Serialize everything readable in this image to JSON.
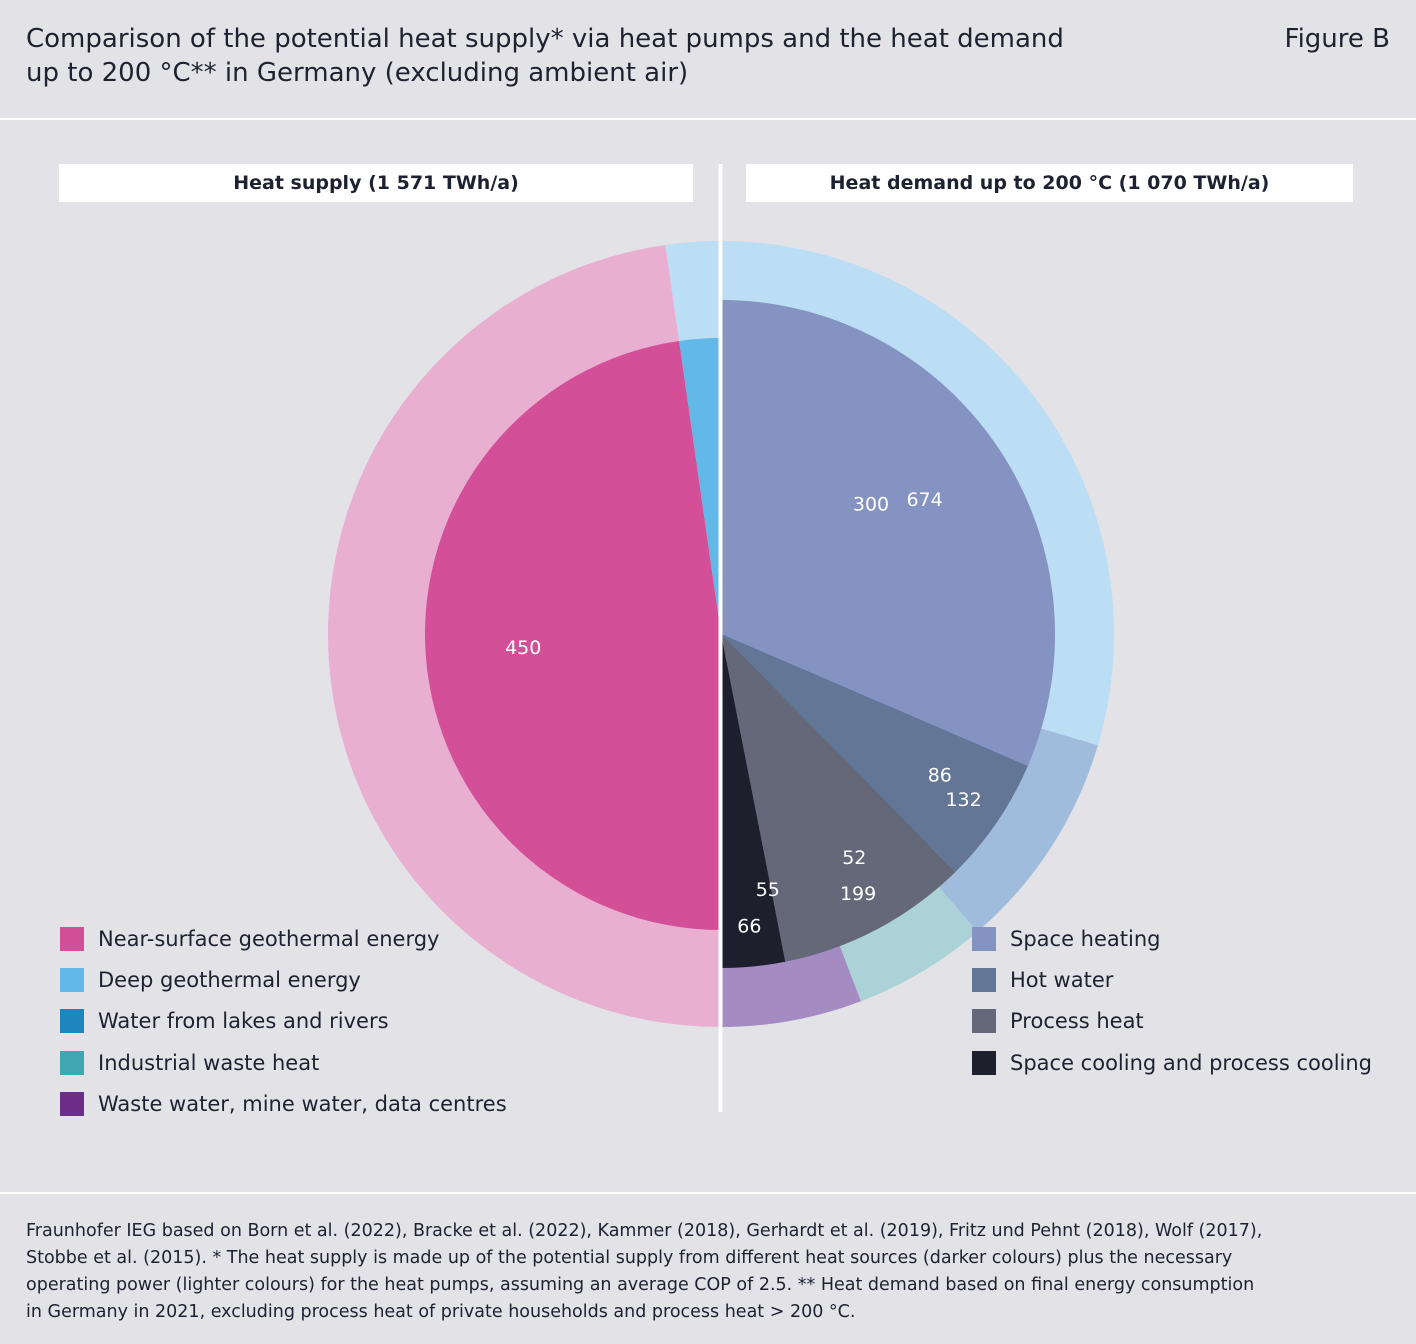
{
  "header": {
    "title_line1": "Comparison of the potential heat supply* via heat pumps and the heat demand",
    "title_line2": "up to 200 °C** in Germany (excluding ambient air)",
    "figure_label": "Figure B"
  },
  "source_lines": [
    "Fraunhofer IEG based on Born et al. (2022), Bracke et al. (2022), Kammer (2018), Gerhardt et al. (2019), Fritz und Pehnt (2018), Wolf (2017),",
    "Stobbe et al. (2015). * The heat supply is made up of the potential supply from different heat sources (darker colours) plus the necessary",
    "operating power (lighter colours) for the heat pumps, assuming an average COP of 2.5. ** Heat demand based on final energy consumption",
    "in Germany in 2021, excluding process heat of private households and process heat > 200 °C."
  ],
  "chart_data": [
    {
      "type": "pie",
      "title": "Heat supply (1 571 TWh/a)",
      "total": 1571,
      "unit": "TWh/a",
      "note": "Half-pie; inner ring = heat source potential, outer ring = source plus operating power",
      "series": [
        {
          "name": "Near-surface geothermal energy",
          "value": 450,
          "color": "#d34f98",
          "light_color": "#e9afd1"
        },
        {
          "name": "Deep geothermal energy",
          "value": 300,
          "color": "#62b9e7",
          "light_color": "#bbdef4"
        },
        {
          "name": "Water from lakes and rivers",
          "value": 86,
          "color": "#1f86bd",
          "light_color": "#a0bcdd"
        },
        {
          "name": "Industrial waste heat",
          "value": 52,
          "color": "#3ea7b2",
          "light_color": "#abd3d7"
        },
        {
          "name": "Waste water, mine water, data centres",
          "value": 55,
          "color": "#6b2d87",
          "light_color": "#a48bc2"
        }
      ]
    },
    {
      "type": "pie",
      "title": "Heat demand up to 200 °C (1 070 TWh/a)",
      "total": 1070,
      "unit": "TWh/a",
      "series": [
        {
          "name": "Space heating",
          "value": 674,
          "color": "#8493c1"
        },
        {
          "name": "Hot water",
          "value": 132,
          "color": "#637696"
        },
        {
          "name": "Process heat",
          "value": 199,
          "color": "#646879"
        },
        {
          "name": "Space cooling and process cooling",
          "value": 66,
          "color": "#1d202c"
        }
      ]
    }
  ]
}
